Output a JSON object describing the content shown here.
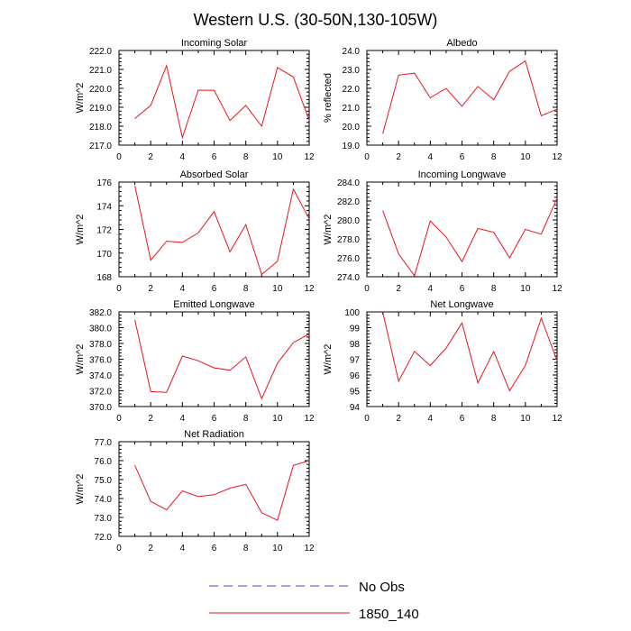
{
  "figure": {
    "title": "Western U.S. (30-50N,130-105W)"
  },
  "legend": [
    {
      "label": "No Obs",
      "color": "#4444cc",
      "dashed": true
    },
    {
      "label": "1850_140",
      "color": "#e8141e",
      "dashed": false
    }
  ],
  "chart_data": [
    {
      "type": "line",
      "title": "Incoming Solar",
      "ylabel": "W/m^2",
      "x": [
        1,
        2,
        3,
        4,
        5,
        6,
        7,
        8,
        9,
        10,
        11,
        12
      ],
      "xlim": [
        0,
        12
      ],
      "xticks": [
        0,
        2,
        4,
        6,
        8,
        10,
        12
      ],
      "ylim": [
        217.0,
        222.0
      ],
      "yticks": [
        "217.0",
        "218.0",
        "219.0",
        "220.0",
        "221.0",
        "222.0"
      ],
      "series": [
        {
          "name": "1850_140",
          "color": "#e8141e",
          "values": [
            218.4,
            219.1,
            221.2,
            217.4,
            219.9,
            219.9,
            218.3,
            219.1,
            218.0,
            221.1,
            220.6,
            218.3
          ]
        }
      ]
    },
    {
      "type": "line",
      "title": "Albedo",
      "ylabel": "% reflected",
      "x": [
        1,
        2,
        3,
        4,
        5,
        6,
        7,
        8,
        9,
        10,
        11,
        12
      ],
      "xlim": [
        0,
        12
      ],
      "xticks": [
        0,
        2,
        4,
        6,
        8,
        10,
        12
      ],
      "ylim": [
        19.0,
        24.0
      ],
      "yticks": [
        "19.0",
        "20.0",
        "21.0",
        "22.0",
        "23.0",
        "24.0"
      ],
      "series": [
        {
          "name": "1850_140",
          "color": "#e8141e",
          "values": [
            19.6,
            22.7,
            22.8,
            21.5,
            22.0,
            21.05,
            22.1,
            21.4,
            22.9,
            23.45,
            20.55,
            20.9
          ]
        }
      ]
    },
    {
      "type": "line",
      "title": "Absorbed Solar",
      "ylabel": "W/m^2",
      "x": [
        1,
        2,
        3,
        4,
        5,
        6,
        7,
        8,
        9,
        10,
        11,
        12
      ],
      "xlim": [
        0,
        12
      ],
      "xticks": [
        0,
        2,
        4,
        6,
        8,
        10,
        12
      ],
      "ylim": [
        168,
        176
      ],
      "yticks": [
        "168",
        "170",
        "172",
        "174",
        "176"
      ],
      "series": [
        {
          "name": "1850_140",
          "color": "#e8141e",
          "values": [
            175.7,
            169.4,
            171.0,
            170.9,
            171.7,
            173.5,
            170.1,
            172.4,
            168.2,
            169.3,
            175.4,
            172.9
          ]
        }
      ]
    },
    {
      "type": "line",
      "title": "Incoming Longwave",
      "ylabel": "W/m^2",
      "x": [
        1,
        2,
        3,
        4,
        5,
        6,
        7,
        8,
        9,
        10,
        11,
        12
      ],
      "xlim": [
        0,
        12
      ],
      "xticks": [
        0,
        2,
        4,
        6,
        8,
        10,
        12
      ],
      "ylim": [
        274.0,
        284.0
      ],
      "yticks": [
        "274.0",
        "276.0",
        "278.0",
        "280.0",
        "282.0",
        "284.0"
      ],
      "series": [
        {
          "name": "1850_140",
          "color": "#e8141e",
          "values": [
            281.0,
            276.4,
            274.1,
            279.9,
            278.2,
            275.6,
            279.1,
            278.7,
            276.0,
            279.0,
            278.5,
            282.3
          ]
        }
      ]
    },
    {
      "type": "line",
      "title": "Emitted Longwave",
      "ylabel": "W/m^2",
      "x": [
        1,
        2,
        3,
        4,
        5,
        6,
        7,
        8,
        9,
        10,
        11,
        12
      ],
      "xlim": [
        0,
        12
      ],
      "xticks": [
        0,
        2,
        4,
        6,
        8,
        10,
        12
      ],
      "ylim": [
        370.0,
        382.0
      ],
      "yticks": [
        "370.0",
        "372.0",
        "374.0",
        "376.0",
        "378.0",
        "380.0",
        "382.0"
      ],
      "series": [
        {
          "name": "1850_140",
          "color": "#e8141e",
          "values": [
            381.0,
            371.9,
            371.8,
            376.4,
            375.8,
            374.9,
            374.6,
            376.3,
            371.0,
            375.5,
            378.1,
            379.2
          ]
        }
      ]
    },
    {
      "type": "line",
      "title": "Net Longwave",
      "ylabel": "W/m^2",
      "x": [
        1,
        2,
        3,
        4,
        5,
        6,
        7,
        8,
        9,
        10,
        11,
        12
      ],
      "xlim": [
        0,
        12
      ],
      "xticks": [
        0,
        2,
        4,
        6,
        8,
        10,
        12
      ],
      "ylim": [
        94,
        100
      ],
      "yticks": [
        "94",
        "95",
        "96",
        "97",
        "98",
        "99",
        "100"
      ],
      "series": [
        {
          "name": "1850_140",
          "color": "#e8141e",
          "values": [
            100.0,
            95.6,
            97.5,
            96.6,
            97.7,
            99.3,
            95.5,
            97.5,
            95.0,
            96.6,
            99.6,
            96.9
          ]
        }
      ]
    },
    {
      "type": "line",
      "title": "Net Radiation",
      "ylabel": "W/m^2",
      "x": [
        1,
        2,
        3,
        4,
        5,
        6,
        7,
        8,
        9,
        10,
        11,
        12
      ],
      "xlim": [
        0,
        12
      ],
      "xticks": [
        0,
        2,
        4,
        6,
        8,
        10,
        12
      ],
      "ylim": [
        72.0,
        77.0
      ],
      "yticks": [
        "72.0",
        "73.0",
        "74.0",
        "75.0",
        "76.0",
        "77.0"
      ],
      "series": [
        {
          "name": "1850_140",
          "color": "#e8141e",
          "values": [
            75.75,
            73.85,
            73.4,
            74.4,
            74.1,
            74.2,
            74.55,
            74.75,
            73.25,
            72.85,
            75.75,
            76.0
          ]
        }
      ]
    }
  ]
}
